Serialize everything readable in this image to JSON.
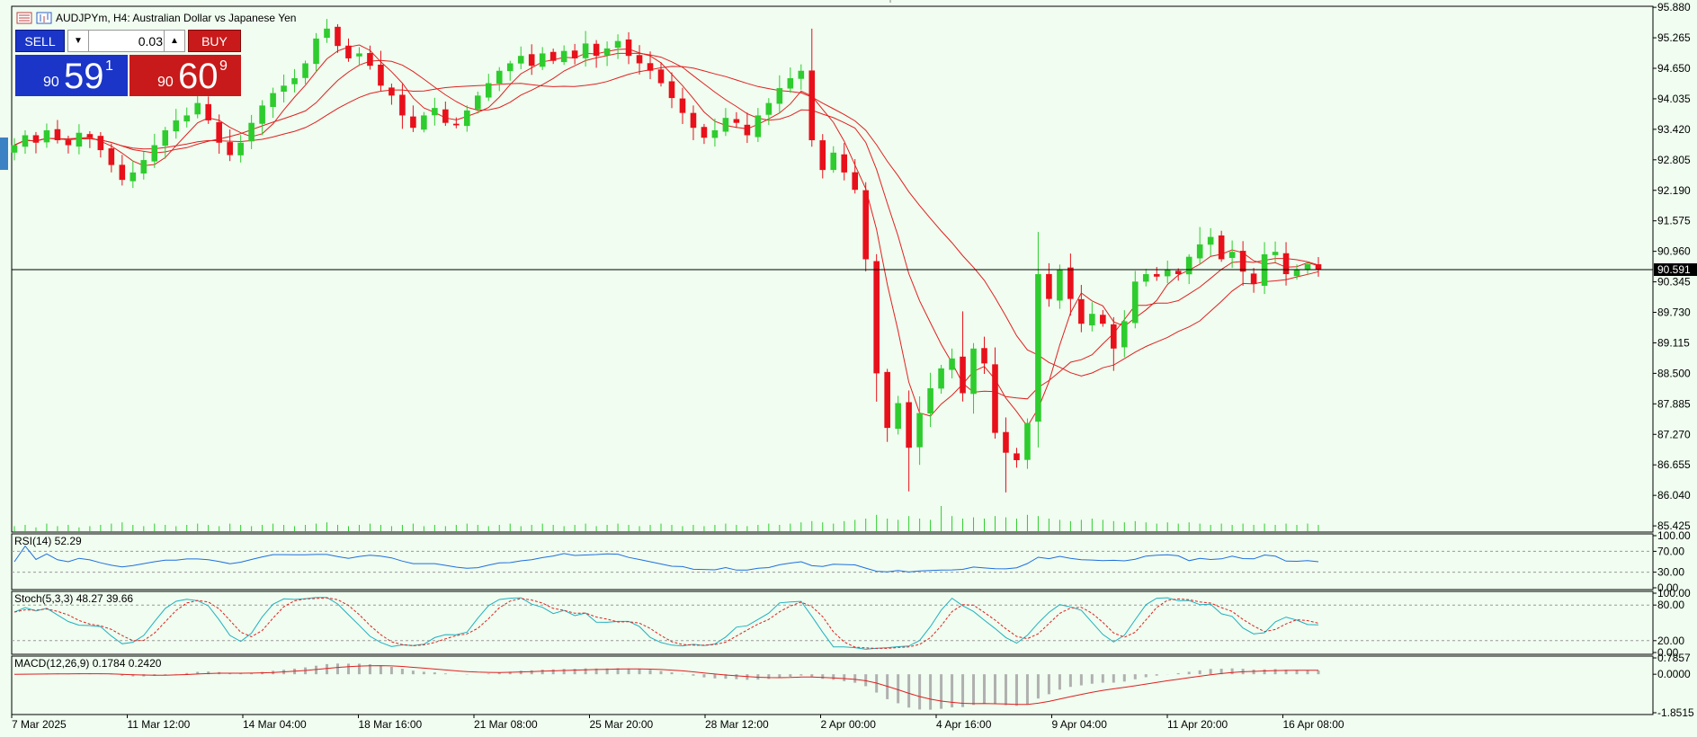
{
  "header": {
    "symbol_title": "AUDJPYm, H4:  Australian Dollar vs Japanese Yen"
  },
  "trade_panel": {
    "sell_label": "SELL",
    "buy_label": "BUY",
    "lot_value": "0.03",
    "sell_price": {
      "prefix": "90",
      "big": "59",
      "sup": "1"
    },
    "buy_price": {
      "prefix": "90",
      "big": "60",
      "sup": "9"
    },
    "colors": {
      "sell": "#1a35c7",
      "buy": "#c81a1a"
    }
  },
  "chart_data": [
    {
      "type": "candlestick",
      "y_axis_ticks": [
        "95.880",
        "95.265",
        "94.650",
        "94.035",
        "93.420",
        "92.805",
        "92.190",
        "91.575",
        "90.960",
        "90.345",
        "89.730",
        "89.115",
        "88.500",
        "87.885",
        "87.270",
        "86.655",
        "86.040",
        "85.425"
      ],
      "ylim": [
        85.3,
        95.9
      ],
      "current_price": "90.591",
      "x_tick_labels": [
        "7 Mar 2025",
        "11 Mar 12:00",
        "14 Mar 04:00",
        "18 Mar 16:00",
        "21 Mar 08:00",
        "25 Mar 20:00",
        "28 Mar 12:00",
        "2 Apr 00:00",
        "4 Apr 16:00",
        "9 Apr 04:00",
        "11 Apr 20:00",
        "16 Apr 08:00"
      ],
      "colors": {
        "up": "#2ecc2e",
        "down": "#e8101a",
        "ma": "#e02020",
        "volume": "#2ecc2e"
      },
      "close": [
        93.1,
        93.3,
        93.15,
        93.4,
        93.2,
        93.1,
        93.35,
        93.25,
        93.0,
        92.7,
        92.4,
        92.55,
        92.8,
        93.1,
        93.4,
        93.6,
        93.7,
        93.95,
        93.6,
        93.15,
        92.9,
        93.15,
        93.55,
        93.9,
        94.15,
        94.3,
        94.45,
        94.75,
        95.25,
        95.45,
        95.1,
        94.85,
        94.95,
        94.7,
        94.3,
        94.1,
        93.7,
        93.45,
        93.7,
        93.85,
        93.55,
        93.5,
        93.8,
        94.1,
        94.35,
        94.6,
        94.75,
        94.9,
        94.7,
        94.95,
        94.8,
        95.0,
        94.85,
        95.15,
        94.9,
        95.05,
        95.2,
        94.9,
        94.75,
        94.6,
        94.35,
        94.05,
        93.75,
        93.45,
        93.25,
        93.4,
        93.65,
        93.55,
        93.3,
        93.7,
        93.95,
        94.25,
        94.45,
        94.6,
        93.2,
        92.6,
        92.95,
        92.55,
        92.2,
        90.8,
        88.5,
        87.4,
        87.9,
        87.0,
        87.7,
        88.2,
        88.6,
        88.8,
        88.1,
        89.0,
        88.7,
        87.3,
        86.9,
        86.75,
        87.5,
        90.5,
        90.0,
        90.6,
        90.0,
        89.5,
        89.7,
        89.5,
        89.0,
        89.55,
        90.35,
        90.5,
        90.45,
        90.6,
        90.5,
        90.85,
        91.1,
        91.25,
        90.8,
        90.95,
        90.55,
        90.3,
        90.9,
        90.95,
        90.5,
        90.6,
        90.7,
        90.591
      ],
      "ma_periods": [
        5,
        10,
        20
      ],
      "volume_relative": [
        0.4,
        0.5,
        0.3,
        0.6,
        0.4,
        0.5,
        0.3,
        0.4,
        0.5,
        0.6,
        0.7,
        0.5,
        0.4,
        0.6,
        0.5,
        0.4,
        0.5,
        0.6,
        0.5,
        0.4,
        0.6,
        0.5,
        0.4,
        0.5,
        0.6,
        0.5,
        0.4,
        0.5,
        0.6,
        0.7,
        0.5,
        0.4,
        0.5,
        0.6,
        0.5,
        0.4,
        0.5,
        0.6,
        0.4,
        0.5,
        0.4,
        0.5,
        0.6,
        0.5,
        0.4,
        0.5,
        0.6,
        0.4,
        0.5,
        0.6,
        0.5,
        0.4,
        0.5,
        0.6,
        0.4,
        0.5,
        0.6,
        0.5,
        0.4,
        0.5,
        0.6,
        0.5,
        0.4,
        0.5,
        0.4,
        0.5,
        0.6,
        0.5,
        0.4,
        0.5,
        0.6,
        0.5,
        0.6,
        0.7,
        0.8,
        0.7,
        0.6,
        0.8,
        0.9,
        1.0,
        1.3,
        1.0,
        0.9,
        1.2,
        1.0,
        0.9,
        2.0,
        1.2,
        1.0,
        1.1,
        1.0,
        1.2,
        1.1,
        1.0,
        1.3,
        1.2,
        1.0,
        0.9,
        0.8,
        0.9,
        1.0,
        0.9,
        0.8,
        0.7,
        0.8,
        0.7,
        0.6,
        0.7,
        0.6,
        0.7,
        0.6,
        0.5,
        0.6,
        0.5,
        0.6,
        0.5,
        0.6,
        0.5,
        0.6,
        0.5,
        0.6,
        0.5
      ]
    },
    {
      "type": "line",
      "name": "RSI(14) 52.29",
      "y_ticks": [
        "100.00",
        "70.00",
        "30.00",
        "0.00"
      ],
      "ylim": [
        0,
        100
      ],
      "levels": [
        70,
        30
      ]
    },
    {
      "type": "line",
      "name": "Stoch(5,3,3) 48.27 39.66",
      "y_ticks": [
        "100.00",
        "80.00",
        "20.00",
        "0.00"
      ],
      "ylim": [
        0,
        100
      ],
      "levels": [
        80,
        20
      ]
    },
    {
      "type": "bar",
      "name": "MACD(12,26,9) 0.1784 0.2420",
      "y_ticks": [
        "0.7857",
        "0.0000",
        "-1.8515"
      ],
      "ylim": [
        -1.8515,
        0.7857
      ]
    }
  ]
}
